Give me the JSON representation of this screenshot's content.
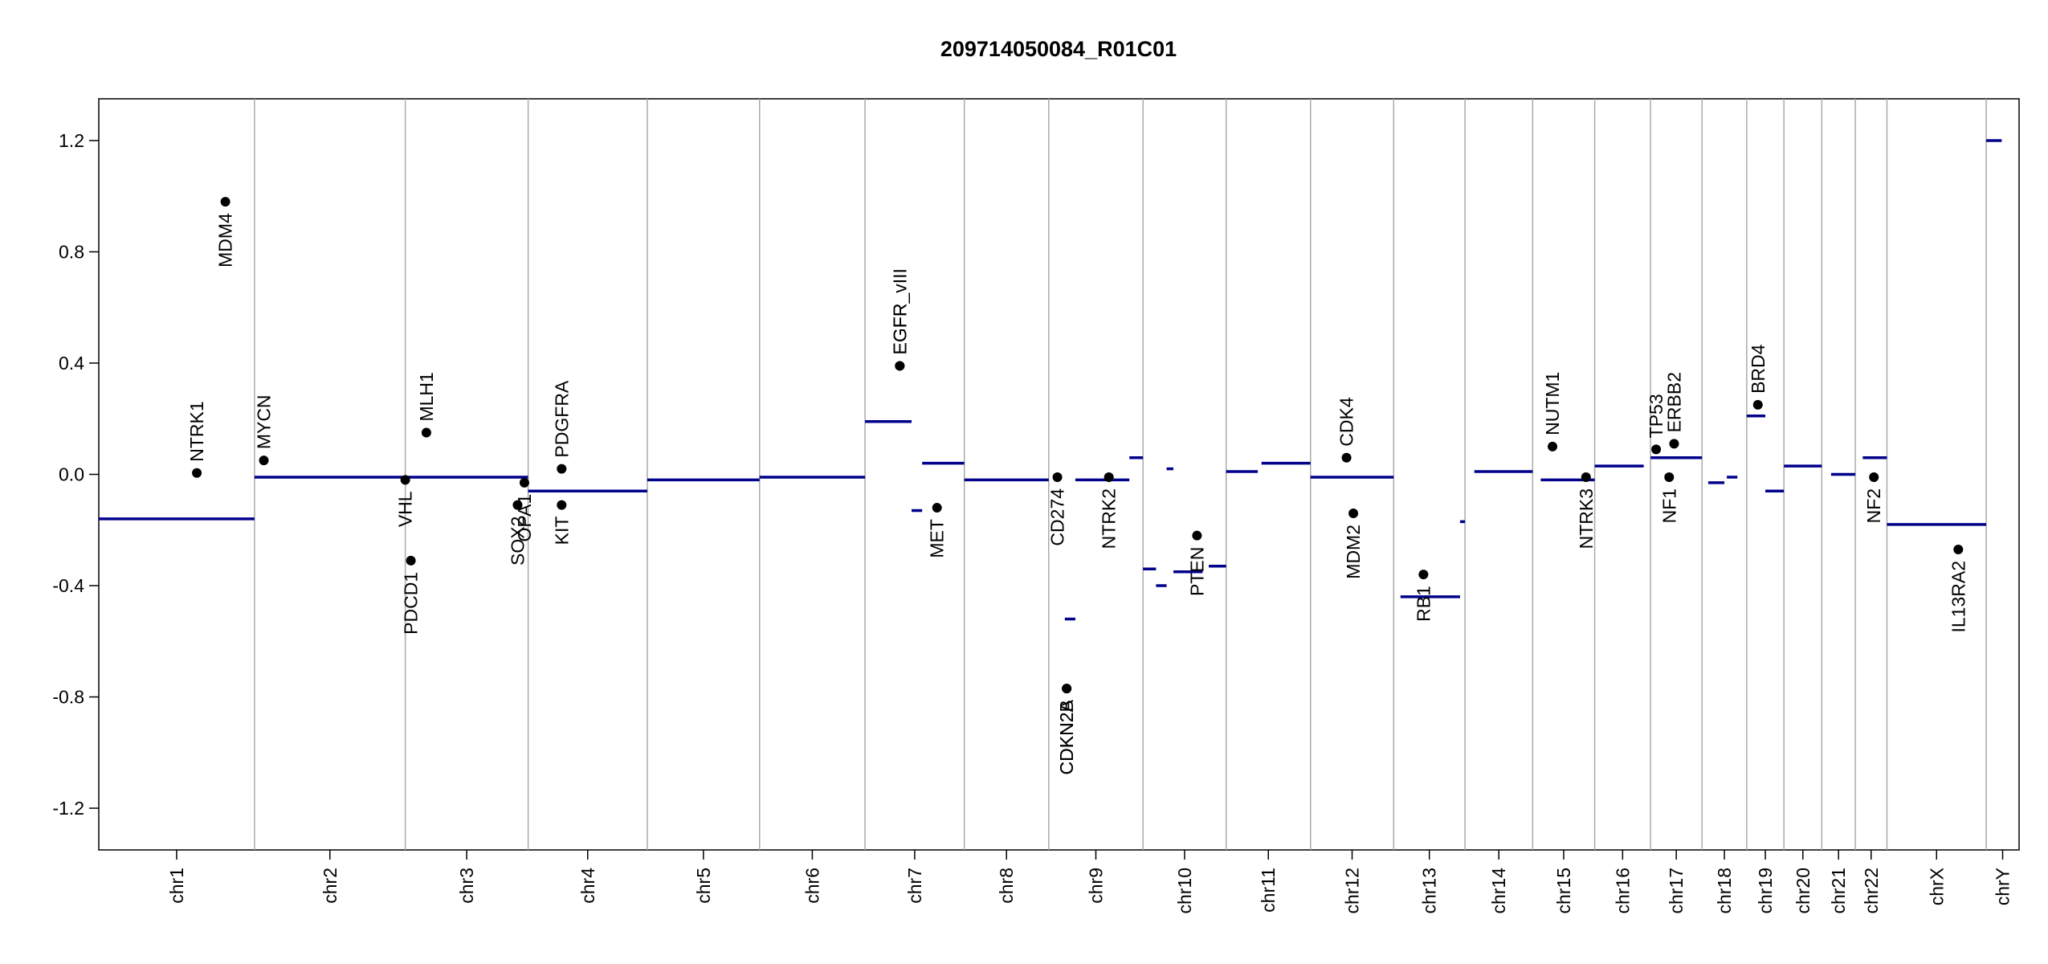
{
  "chart_data": {
    "type": "scatter",
    "title": "209714050084_R01C01",
    "xlim": [
      0,
      3095
    ],
    "ylim": [
      -1.35,
      1.35
    ],
    "yticks": [
      -1.2,
      -0.8,
      -0.4,
      {
        "value": 0,
        "label": "0.0"
      },
      0.4,
      0.8,
      1.2
    ],
    "segment_color": "#00008b",
    "point_color": "#000000",
    "chromosomes": [
      {
        "name": "chr1",
        "start": 0,
        "end": 251
      },
      {
        "name": "chr2",
        "start": 251,
        "end": 494
      },
      {
        "name": "chr3",
        "start": 494,
        "end": 692
      },
      {
        "name": "chr4",
        "start": 692,
        "end": 884
      },
      {
        "name": "chr5",
        "start": 884,
        "end": 1065
      },
      {
        "name": "chr6",
        "start": 1065,
        "end": 1235
      },
      {
        "name": "chr7",
        "start": 1235,
        "end": 1395
      },
      {
        "name": "chr8",
        "start": 1395,
        "end": 1531
      },
      {
        "name": "chr9",
        "start": 1531,
        "end": 1683
      },
      {
        "name": "chr10",
        "start": 1683,
        "end": 1817
      },
      {
        "name": "chr11",
        "start": 1817,
        "end": 1953
      },
      {
        "name": "chr12",
        "start": 1953,
        "end": 2087
      },
      {
        "name": "chr13",
        "start": 2087,
        "end": 2202
      },
      {
        "name": "chr14",
        "start": 2202,
        "end": 2311
      },
      {
        "name": "chr15",
        "start": 2311,
        "end": 2411
      },
      {
        "name": "chr16",
        "start": 2411,
        "end": 2501
      },
      {
        "name": "chr17",
        "start": 2501,
        "end": 2584
      },
      {
        "name": "chr18",
        "start": 2584,
        "end": 2656
      },
      {
        "name": "chr19",
        "start": 2656,
        "end": 2716
      },
      {
        "name": "chr20",
        "start": 2716,
        "end": 2777
      },
      {
        "name": "chr21",
        "start": 2777,
        "end": 2831
      },
      {
        "name": "chr22",
        "start": 2831,
        "end": 2882
      },
      {
        "name": "chrX",
        "start": 2882,
        "end": 3042
      },
      {
        "name": "chrY",
        "start": 3042,
        "end": 3095
      }
    ],
    "segments": [
      {
        "start": 0,
        "end": 251,
        "value": -0.16
      },
      {
        "start": 251,
        "end": 494,
        "value": -0.01
      },
      {
        "start": 494,
        "end": 692,
        "value": -0.01
      },
      {
        "start": 692,
        "end": 884,
        "value": -0.06
      },
      {
        "start": 884,
        "end": 1065,
        "value": -0.02
      },
      {
        "start": 1065,
        "end": 1235,
        "value": -0.01
      },
      {
        "start": 1235,
        "end": 1310,
        "value": 0.19
      },
      {
        "start": 1310,
        "end": 1327,
        "value": -0.13
      },
      {
        "start": 1327,
        "end": 1395,
        "value": 0.04
      },
      {
        "start": 1395,
        "end": 1531,
        "value": -0.02
      },
      {
        "start": 1557,
        "end": 1574,
        "value": -0.52
      },
      {
        "start": 1574,
        "end": 1661,
        "value": -0.02
      },
      {
        "start": 1661,
        "end": 1683,
        "value": 0.06
      },
      {
        "start": 1683,
        "end": 1704,
        "value": -0.34
      },
      {
        "start": 1704,
        "end": 1721,
        "value": -0.4
      },
      {
        "start": 1721,
        "end": 1732,
        "value": 0.02
      },
      {
        "start": 1732,
        "end": 1779,
        "value": -0.35
      },
      {
        "start": 1789,
        "end": 1817,
        "value": -0.33
      },
      {
        "start": 1817,
        "end": 1868,
        "value": 0.01
      },
      {
        "start": 1874,
        "end": 1953,
        "value": 0.04
      },
      {
        "start": 1953,
        "end": 2087,
        "value": -0.01
      },
      {
        "start": 2098,
        "end": 2194,
        "value": -0.44
      },
      {
        "start": 2194,
        "end": 2202,
        "value": -0.17
      },
      {
        "start": 2217,
        "end": 2311,
        "value": 0.01
      },
      {
        "start": 2324,
        "end": 2411,
        "value": -0.02
      },
      {
        "start": 2411,
        "end": 2490,
        "value": 0.03
      },
      {
        "start": 2501,
        "end": 2584,
        "value": 0.06
      },
      {
        "start": 2594,
        "end": 2620,
        "value": -0.03
      },
      {
        "start": 2624,
        "end": 2641,
        "value": -0.01
      },
      {
        "start": 2656,
        "end": 2686,
        "value": 0.21
      },
      {
        "start": 2686,
        "end": 2716,
        "value": -0.06
      },
      {
        "start": 2716,
        "end": 2777,
        "value": 0.03
      },
      {
        "start": 2792,
        "end": 2831,
        "value": 0
      },
      {
        "start": 2843,
        "end": 2882,
        "value": 0.06
      },
      {
        "start": 2882,
        "end": 3042,
        "value": -0.18
      },
      {
        "start": 3042,
        "end": 3067,
        "value": 1.2
      }
    ],
    "genes": [
      {
        "name": "NTRK1",
        "x": 158,
        "y": 0.005
      },
      {
        "name": "MDM4",
        "x": 204,
        "y": 0.98
      },
      {
        "name": "MYCN",
        "x": 266,
        "y": 0.05
      },
      {
        "name": "VHL",
        "x": 494,
        "y": -0.02
      },
      {
        "name": "PDCD1",
        "x": 503,
        "y": -0.31
      },
      {
        "name": "MLH1",
        "x": 528,
        "y": 0.15
      },
      {
        "name": "SOX2",
        "x": 675,
        "y": -0.11
      },
      {
        "name": "OPA1",
        "x": 686,
        "y": -0.03
      },
      {
        "name": "PDGFRA",
        "x": 746,
        "y": 0.02
      },
      {
        "name": "KIT",
        "x": 746,
        "y": -0.11
      },
      {
        "name": "EGFR",
        "x": 1291,
        "y": 0.39
      },
      {
        "name": "EGFR_vIII",
        "x": 1291,
        "y": 0.39
      },
      {
        "name": "MET",
        "x": 1351,
        "y": -0.12
      },
      {
        "name": "CD274",
        "x": 1545,
        "y": -0.01
      },
      {
        "name": "CDKN2A",
        "x": 1560,
        "y": -0.77
      },
      {
        "name": "CDKN2B",
        "x": 1560,
        "y": -0.77
      },
      {
        "name": "NTRK2",
        "x": 1628,
        "y": -0.01
      },
      {
        "name": "PTEN",
        "x": 1770,
        "y": -0.22
      },
      {
        "name": "CDK4",
        "x": 2011,
        "y": 0.06
      },
      {
        "name": "MDM2",
        "x": 2022,
        "y": -0.14
      },
      {
        "name": "RB1",
        "x": 2135,
        "y": -0.36
      },
      {
        "name": "NUTM1",
        "x": 2343,
        "y": 0.1
      },
      {
        "name": "NTRK3",
        "x": 2397,
        "y": -0.01
      },
      {
        "name": "TP53",
        "x": 2510,
        "y": 0.09
      },
      {
        "name": "ERBB2",
        "x": 2539,
        "y": 0.11
      },
      {
        "name": "NF1",
        "x": 2531,
        "y": -0.01
      },
      {
        "name": "BRD4",
        "x": 2674,
        "y": 0.25
      },
      {
        "name": "NF2",
        "x": 2861,
        "y": -0.01
      },
      {
        "name": "IL13RA2",
        "x": 2997,
        "y": -0.27
      }
    ]
  }
}
